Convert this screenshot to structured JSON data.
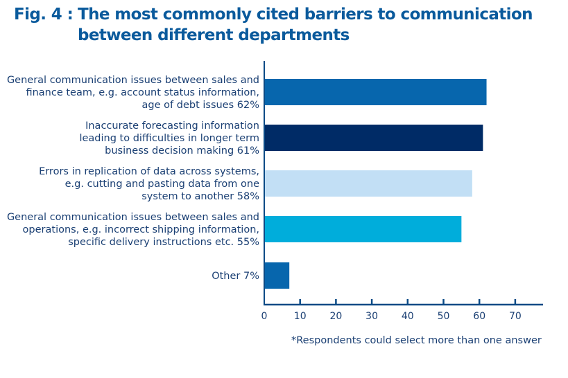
{
  "chart_data": {
    "type": "bar",
    "orientation": "horizontal",
    "title_prefix": "Fig. 4 :",
    "title_line1": "The most commonly cited barriers to communication",
    "title_line2": "between different departments",
    "categories": [
      [
        "General communication issues between sales and",
        "finance team, e.g. account status information,",
        "age of debt issues  62%"
      ],
      [
        "Inaccurate forecasting information",
        "leading to difficulties in longer term",
        "business decision making  61%"
      ],
      [
        "Errors in replication of data across systems,",
        "e.g. cutting and pasting data from one",
        "system to another  58%"
      ],
      [
        "General communication issues between sales and",
        "operations, e.g. incorrect shipping information,",
        "specific delivery instructions etc.  55%"
      ],
      [
        "Other  7%"
      ]
    ],
    "values": [
      62,
      61,
      58,
      55,
      7
    ],
    "colors": [
      "#0766ad",
      "#002b66",
      "#c2dff5",
      "#00addb",
      "#0766ad"
    ],
    "xlim": [
      0,
      78
    ],
    "xticks": [
      0,
      10,
      20,
      30,
      40,
      50,
      60,
      70
    ],
    "xlabel": "",
    "ylabel": "",
    "grid": false,
    "axis_color": "#0a4a86",
    "footnote": "*Respondents could select more than one answer"
  }
}
